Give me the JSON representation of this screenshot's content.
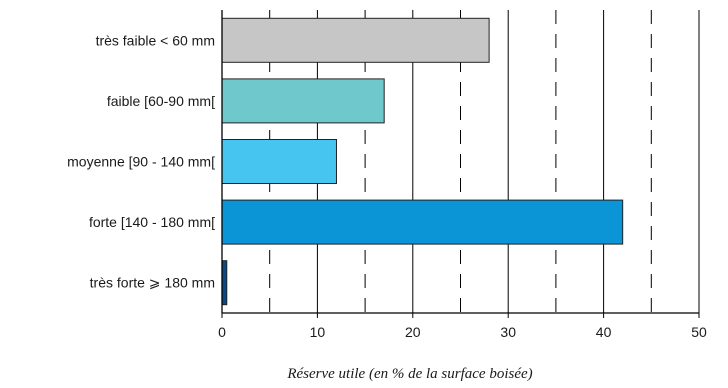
{
  "chart_data": {
    "type": "bar",
    "orientation": "horizontal",
    "categories": [
      "très faible  < 60 mm",
      "faible [60-90 mm[",
      "moyenne [90 - 140 mm[",
      "forte [140 - 180 mm[",
      "très forte  ⩾ 180 mm"
    ],
    "values": [
      28,
      17,
      12,
      42,
      0.5
    ],
    "colors": [
      "#c6c6c6",
      "#6ec8cc",
      "#45c5ef",
      "#0b94d6",
      "#0a4a86"
    ],
    "xlabel": "Réserve utile (en % de la surface boisée)",
    "xlim": [
      0,
      50
    ],
    "x_ticks": [
      "0",
      "10",
      "20",
      "30",
      "40",
      "50"
    ],
    "grid": "vertical lines: solid at 10, 20, 30, 40; dashed at 5, 15, 25, 35, 45",
    "legend": "none"
  }
}
